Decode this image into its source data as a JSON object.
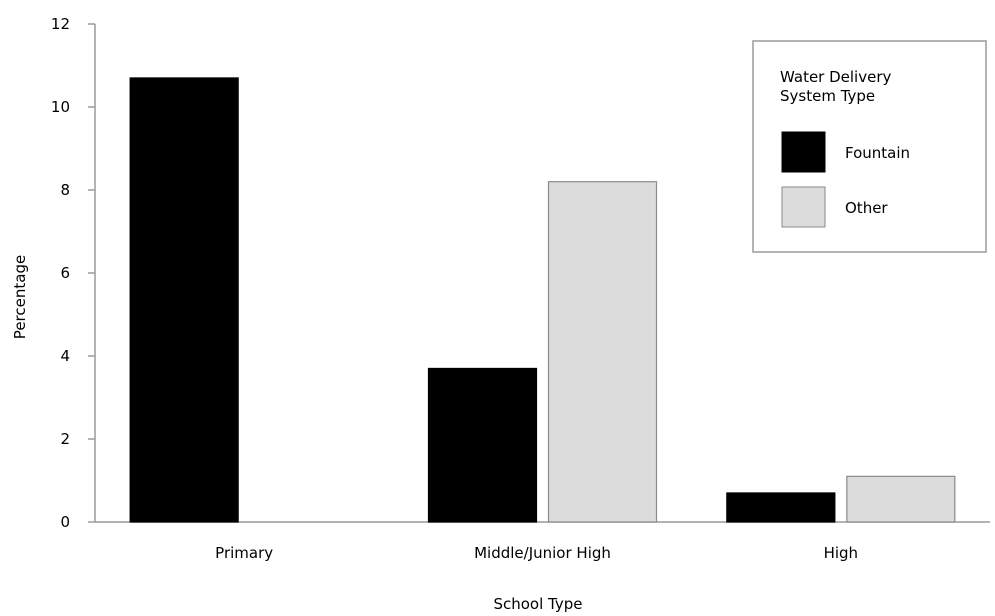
{
  "chart_data": {
    "type": "bar",
    "categories": [
      "Primary",
      "Middle/Junior High",
      "High"
    ],
    "series": [
      {
        "name": "Fountain",
        "color": "#000000",
        "values": [
          10.7,
          3.7,
          0.7
        ]
      },
      {
        "name": "Other",
        "color": "#dcdcdc",
        "values": [
          null,
          8.2,
          1.1
        ]
      }
    ],
    "xlabel": "School Type",
    "ylabel": "Percentage",
    "ylim": [
      0,
      12
    ],
    "yticks": [
      "0",
      "2",
      "4",
      "6",
      "8",
      "10",
      "12"
    ],
    "grid": false,
    "legend": {
      "title_lines": [
        "Water Delivery",
        "System Type"
      ],
      "placement": "top-right"
    }
  }
}
